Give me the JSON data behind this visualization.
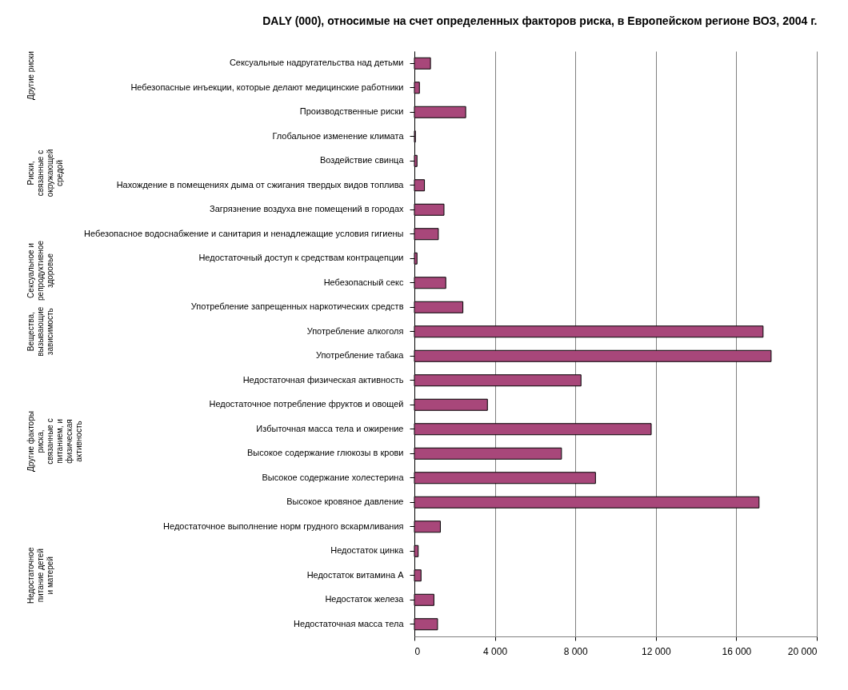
{
  "chart_data": {
    "type": "bar",
    "orientation": "horizontal",
    "title": "DALY (000), относимые на счет определенных факторов риска, в Европейском регионе ВОЗ, 2004 г.",
    "categories": [
      "Сексуальные надругательства над детьми",
      "Небезопасные инъекции, которые делают медицинские работники",
      "Производственные риски",
      "Глобальное изменение климата",
      "Воздействие свинца",
      "Нахождение в помещениях дыма от сжигания твердых видов топлива",
      "Загрязнение воздуха вне помещений в городах",
      "Небезопасное водоснабжение и санитария и ненадлежащие условия гигиены",
      "Недостаточный доступ к средствам контрацепции",
      "Небезопасный секс",
      "Употребление запрещенных наркотических средств",
      "Употребление алкоголя",
      "Употребление табака",
      "Недостаточная физическая активность",
      "Недостаточное потребление фруктов и овощей",
      "Избыточная масса тела и ожирение",
      "Высокое содержание глюкозы в крови",
      "Высокое содержание холестерина",
      "Высокое кровяное давление",
      "Недостаточное выполнение норм грудного вскармливания",
      "Недостаток цинка",
      "Недостаток витамина А",
      "Недостаток железа",
      "Недостаточная масса тела"
    ],
    "values": [
      800,
      250,
      2550,
      50,
      130,
      500,
      1470,
      1190,
      130,
      1560,
      2410,
      17330,
      17730,
      8280,
      3630,
      11770,
      7310,
      9000,
      17130,
      1290,
      190,
      330,
      970,
      1150
    ],
    "color": "#a8477a",
    "xlim": [
      0,
      20000
    ],
    "xticks": [
      0,
      {
        "value": 4000,
        "label": "4 000"
      },
      {
        "value": 8000,
        "label": "8 000"
      },
      {
        "value": 12000,
        "label": "12 000"
      },
      {
        "value": 16000,
        "label": "16 000"
      },
      {
        "value": 20000,
        "label": "20 000"
      }
    ],
    "grid": "x",
    "annotations": [
      "Другие риски",
      "Риски, связанные с окружающей средой",
      "Сексуальное и репродуктивное здоровье",
      "Вещества, вызывающие зависимость",
      "Другие факторы риска, связанные с питанием, и физическая активность",
      "Недостаточное питание детей и матерей"
    ]
  }
}
